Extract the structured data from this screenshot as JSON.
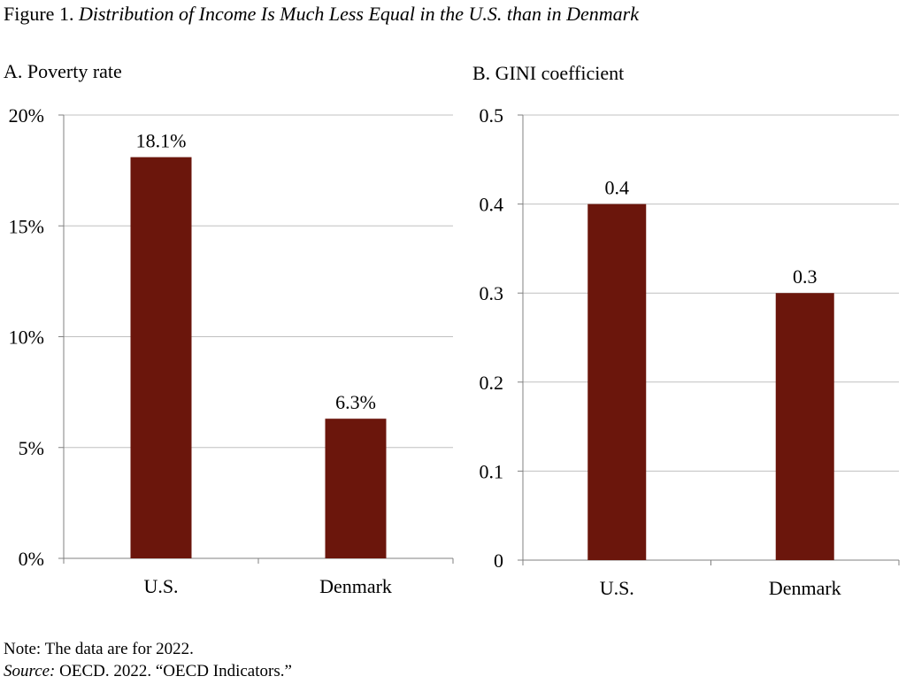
{
  "figure": {
    "label": "Figure 1.",
    "title": "Distribution of Income Is Much Less Equal in the U.S. than in Denmark"
  },
  "colors": {
    "bar": "#6b160c",
    "grid": "#c0c0c0",
    "axis": "#808080"
  },
  "chart_data": [
    {
      "type": "bar",
      "title": "A. Poverty rate",
      "categories": [
        "U.S.",
        "Denmark"
      ],
      "values": [
        18.1,
        6.3
      ],
      "data_labels": [
        "18.1%",
        "6.3%"
      ],
      "ylim": [
        0,
        20
      ],
      "yticks": [
        0,
        5,
        10,
        15,
        20
      ],
      "ytick_labels": [
        "0%",
        "5%",
        "10%",
        "15%",
        "20%"
      ],
      "xlabel": "",
      "ylabel": "",
      "grid": true,
      "legend": "none"
    },
    {
      "type": "bar",
      "title": "B. GINI coefficient",
      "categories": [
        "U.S.",
        "Denmark"
      ],
      "values": [
        0.4,
        0.3
      ],
      "data_labels": [
        "0.4",
        "0.3"
      ],
      "ylim": [
        0,
        0.5
      ],
      "yticks": [
        0,
        0.1,
        0.2,
        0.3,
        0.4,
        0.5
      ],
      "ytick_labels": [
        "0",
        "0.1",
        "0.2",
        "0.3",
        "0.4",
        "0.5"
      ],
      "xlabel": "",
      "ylabel": "",
      "grid": true,
      "legend": "none"
    }
  ],
  "footer": {
    "note": "Note: The data are for 2022.",
    "source_label": "Source:",
    "source_text": " OECD. 2022. “OECD Indicators.”"
  }
}
